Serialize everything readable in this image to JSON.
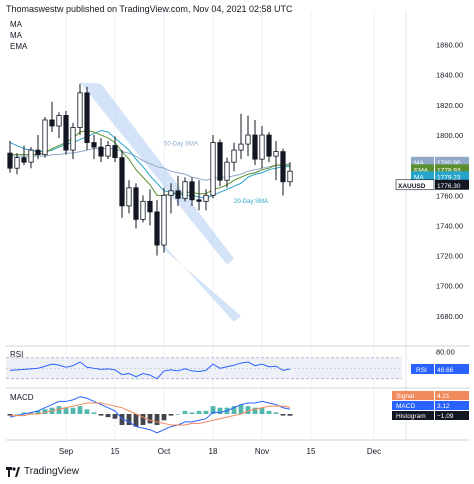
{
  "header": {
    "published": "Thomaswestw published on TradingView.com, Nov 04, 2021 02:58 UTC",
    "indicators": [
      "MA",
      "MA",
      "EMA"
    ]
  },
  "brand": {
    "icon": "tradingview-logo-icon",
    "name": "TradingView"
  },
  "colors": {
    "up_candle": "#ffffff",
    "down_candle": "#131722",
    "sma50": "#8fa8c8",
    "sma20": "#26a4c9",
    "ema": "#5b8f2e",
    "rsi": "#2962ff",
    "macd_line": "#2962ff",
    "signal_line": "#f08a5d",
    "histogram_up": "#26a69a",
    "histogram_down": "#131722",
    "channel": "#aac8f0",
    "xauusd_tag": "#131722"
  },
  "chart_data": [
    {
      "type": "candlestick",
      "title": "XAUUSD",
      "yaxis_ticks": [
        "1860.00",
        "1840.00",
        "1820.00",
        "1800.00",
        "1780.00",
        "1760.00",
        "1740.00",
        "1720.00",
        "1700.00",
        "1680.00"
      ],
      "ylim": [
        1664,
        1875
      ],
      "xaxis_ticks": [
        "Sep",
        "15",
        "Oct",
        "18",
        "Nov",
        "15",
        "Dec"
      ],
      "annotations": [
        "50-Day SMA",
        "20-Day SMA"
      ],
      "candles": [
        {
          "o": 1788,
          "h": 1796,
          "l": 1775,
          "c": 1778
        },
        {
          "o": 1778,
          "h": 1788,
          "l": 1774,
          "c": 1785
        },
        {
          "o": 1785,
          "h": 1793,
          "l": 1780,
          "c": 1782
        },
        {
          "o": 1782,
          "h": 1792,
          "l": 1778,
          "c": 1790
        },
        {
          "o": 1790,
          "h": 1800,
          "l": 1784,
          "c": 1787
        },
        {
          "o": 1787,
          "h": 1812,
          "l": 1785,
          "c": 1810
        },
        {
          "o": 1810,
          "h": 1822,
          "l": 1802,
          "c": 1806
        },
        {
          "o": 1806,
          "h": 1815,
          "l": 1798,
          "c": 1813
        },
        {
          "o": 1813,
          "h": 1816,
          "l": 1787,
          "c": 1790
        },
        {
          "o": 1790,
          "h": 1808,
          "l": 1784,
          "c": 1805
        },
        {
          "o": 1805,
          "h": 1834,
          "l": 1800,
          "c": 1828
        },
        {
          "o": 1828,
          "h": 1832,
          "l": 1790,
          "c": 1795
        },
        {
          "o": 1795,
          "h": 1800,
          "l": 1784,
          "c": 1792
        },
        {
          "o": 1792,
          "h": 1798,
          "l": 1782,
          "c": 1786
        },
        {
          "o": 1786,
          "h": 1796,
          "l": 1784,
          "c": 1793
        },
        {
          "o": 1793,
          "h": 1799,
          "l": 1782,
          "c": 1785
        },
        {
          "o": 1785,
          "h": 1790,
          "l": 1745,
          "c": 1753
        },
        {
          "o": 1753,
          "h": 1770,
          "l": 1748,
          "c": 1765
        },
        {
          "o": 1765,
          "h": 1768,
          "l": 1738,
          "c": 1744
        },
        {
          "o": 1744,
          "h": 1760,
          "l": 1742,
          "c": 1756
        },
        {
          "o": 1756,
          "h": 1764,
          "l": 1740,
          "c": 1749
        },
        {
          "o": 1749,
          "h": 1757,
          "l": 1720,
          "c": 1727
        },
        {
          "o": 1727,
          "h": 1765,
          "l": 1722,
          "c": 1760
        },
        {
          "o": 1760,
          "h": 1768,
          "l": 1748,
          "c": 1763
        },
        {
          "o": 1763,
          "h": 1773,
          "l": 1753,
          "c": 1758
        },
        {
          "o": 1758,
          "h": 1772,
          "l": 1756,
          "c": 1769
        },
        {
          "o": 1769,
          "h": 1772,
          "l": 1753,
          "c": 1757
        },
        {
          "o": 1757,
          "h": 1770,
          "l": 1750,
          "c": 1756
        },
        {
          "o": 1756,
          "h": 1764,
          "l": 1750,
          "c": 1760
        },
        {
          "o": 1760,
          "h": 1800,
          "l": 1758,
          "c": 1795
        },
        {
          "o": 1795,
          "h": 1797,
          "l": 1766,
          "c": 1770
        },
        {
          "o": 1770,
          "h": 1785,
          "l": 1765,
          "c": 1782
        },
        {
          "o": 1782,
          "h": 1795,
          "l": 1776,
          "c": 1790
        },
        {
          "o": 1790,
          "h": 1814,
          "l": 1784,
          "c": 1794
        },
        {
          "o": 1794,
          "h": 1813,
          "l": 1786,
          "c": 1800
        },
        {
          "o": 1800,
          "h": 1810,
          "l": 1780,
          "c": 1784
        },
        {
          "o": 1784,
          "h": 1806,
          "l": 1778,
          "c": 1800
        },
        {
          "o": 1800,
          "h": 1802,
          "l": 1782,
          "c": 1786
        },
        {
          "o": 1786,
          "h": 1796,
          "l": 1770,
          "c": 1789
        },
        {
          "o": 1789,
          "h": 1791,
          "l": 1760,
          "c": 1769
        },
        {
          "o": 1769,
          "h": 1782,
          "l": 1766,
          "c": 1776
        }
      ],
      "series": [
        {
          "name": "MA",
          "values": [
            1786,
            1786,
            1786,
            1786,
            1786,
            1786,
            1787,
            1787,
            1788,
            1788,
            1789,
            1790,
            1791,
            1791,
            1791,
            1791,
            1789,
            1788,
            1786,
            1783,
            1781,
            1779,
            1778,
            1776,
            1775,
            1774,
            1772,
            1771,
            1770,
            1771,
            1772,
            1772,
            1773,
            1774,
            1776,
            1777,
            1778,
            1779,
            1780,
            1780,
            1781
          ]
        },
        {
          "name": "MA",
          "values": [
            1795,
            1793,
            1791,
            1790,
            1789,
            1789,
            1790,
            1792,
            1794,
            1795,
            1797,
            1799,
            1801,
            1803,
            1802,
            1798,
            1794,
            1790,
            1784,
            1779,
            1773,
            1768,
            1763,
            1762,
            1761,
            1760,
            1760,
            1759,
            1758,
            1760,
            1762,
            1764,
            1766,
            1768,
            1772,
            1774,
            1775,
            1777,
            1778,
            1779,
            1779
          ]
        },
        {
          "name": "EMA",
          "values": [
            1787,
            1787,
            1787,
            1787,
            1787,
            1788,
            1791,
            1793,
            1795,
            1798,
            1802,
            1803,
            1802,
            1800,
            1798,
            1795,
            1789,
            1784,
            1777,
            1772,
            1767,
            1760,
            1760,
            1761,
            1761,
            1762,
            1762,
            1761,
            1761,
            1764,
            1765,
            1767,
            1770,
            1772,
            1774,
            1775,
            1777,
            1778,
            1780,
            1780,
            1780
          ]
        }
      ],
      "price_tags": [
        {
          "label": "MA",
          "value": "1780.90"
        },
        {
          "label": "EMA",
          "value": "1779.93"
        },
        {
          "label": "MA",
          "value": "1779.23"
        },
        {
          "label": "XAUUSD",
          "value": "1776.30"
        }
      ]
    },
    {
      "type": "line",
      "title": "RSI",
      "yaxis_ticks": [
        "80.00"
      ],
      "last_value": "48.66",
      "series": [
        {
          "name": "RSI",
          "values": [
            46,
            47,
            48,
            49,
            50,
            54,
            58,
            56,
            52,
            55,
            62,
            52,
            50,
            48,
            49,
            47,
            38,
            40,
            34,
            40,
            37,
            30,
            45,
            47,
            45,
            49,
            45,
            44,
            46,
            58,
            50,
            53,
            56,
            60,
            62,
            55,
            58,
            53,
            54,
            46,
            48.66
          ]
        }
      ]
    },
    {
      "type": "bar",
      "title": "MACD",
      "tags": [
        {
          "label": "Signal",
          "value": "4.21"
        },
        {
          "label": "MACD",
          "value": "3.12"
        },
        {
          "label": "Histogram",
          "value": "−1.09"
        }
      ],
      "series": [
        {
          "name": "MACD",
          "values": [
            -2,
            -1,
            0,
            1,
            2,
            4,
            6,
            8,
            8,
            9,
            11,
            10,
            8,
            6,
            4,
            2,
            -3,
            -5,
            -8,
            -9,
            -10,
            -12,
            -10,
            -8,
            -7,
            -5,
            -5,
            -4,
            -3,
            1,
            1,
            2,
            4,
            6,
            7,
            7,
            8,
            7,
            6,
            4,
            3.12
          ]
        },
        {
          "name": "Signal",
          "values": [
            -1,
            -1,
            -1,
            0,
            0,
            1,
            2,
            3,
            4,
            5,
            6,
            7,
            7,
            7,
            6,
            5,
            4,
            2,
            0,
            -2,
            -4,
            -5,
            -6,
            -7,
            -7,
            -7,
            -6,
            -6,
            -5,
            -4,
            -3,
            -2,
            -1,
            0,
            2,
            3,
            4,
            5,
            5,
            5,
            4.21
          ]
        },
        {
          "name": "Histogram",
          "values": [
            -1,
            0,
            1,
            1,
            2,
            3,
            4,
            5,
            4,
            4,
            5,
            3,
            1,
            -1,
            -2,
            -3,
            -7,
            -7,
            -8,
            -7,
            -6,
            -7,
            -4,
            -1,
            0,
            2,
            1,
            2,
            2,
            5,
            4,
            4,
            5,
            6,
            5,
            4,
            4,
            2,
            1,
            -1,
            -1.09
          ]
        }
      ]
    }
  ]
}
